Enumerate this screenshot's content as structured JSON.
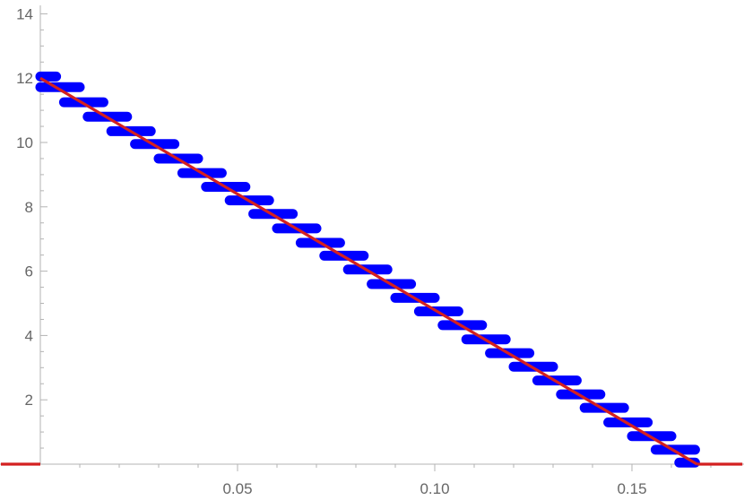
{
  "chart_data": {
    "type": "scatter",
    "title": "",
    "xlabel": "",
    "ylabel": "",
    "xlim": [
      0,
      0.178
    ],
    "ylim": [
      0,
      14
    ],
    "x_ticks": [
      {
        "value": 0.05,
        "label": "0.05"
      },
      {
        "value": 0.1,
        "label": "0.10"
      },
      {
        "value": 0.15,
        "label": "0.15"
      }
    ],
    "y_ticks": [
      {
        "value": 2,
        "label": "2"
      },
      {
        "value": 4,
        "label": "4"
      },
      {
        "value": 6,
        "label": "6"
      },
      {
        "value": 8,
        "label": "8"
      },
      {
        "value": 10,
        "label": "10"
      },
      {
        "value": 12,
        "label": "12"
      },
      {
        "value": 14,
        "label": "14"
      }
    ],
    "grid": false,
    "legend": "none",
    "series": [
      {
        "kind": "points",
        "color": "#0000ff",
        "segments": [
          {
            "x_start": 0.0,
            "x_end": 0.004,
            "y": 12.05
          },
          {
            "x_start": 0.0,
            "x_end": 0.01,
            "y": 11.72
          },
          {
            "x_start": 0.006,
            "x_end": 0.016,
            "y": 11.25
          },
          {
            "x_start": 0.012,
            "x_end": 0.022,
            "y": 10.8
          },
          {
            "x_start": 0.018,
            "x_end": 0.028,
            "y": 10.35
          },
          {
            "x_start": 0.024,
            "x_end": 0.034,
            "y": 9.95
          },
          {
            "x_start": 0.03,
            "x_end": 0.04,
            "y": 9.5
          },
          {
            "x_start": 0.036,
            "x_end": 0.046,
            "y": 9.05
          },
          {
            "x_start": 0.042,
            "x_end": 0.052,
            "y": 8.62
          },
          {
            "x_start": 0.048,
            "x_end": 0.058,
            "y": 8.2
          },
          {
            "x_start": 0.054,
            "x_end": 0.064,
            "y": 7.78
          },
          {
            "x_start": 0.06,
            "x_end": 0.07,
            "y": 7.33
          },
          {
            "x_start": 0.066,
            "x_end": 0.076,
            "y": 6.88
          },
          {
            "x_start": 0.072,
            "x_end": 0.082,
            "y": 6.48
          },
          {
            "x_start": 0.078,
            "x_end": 0.088,
            "y": 6.05
          },
          {
            "x_start": 0.084,
            "x_end": 0.094,
            "y": 5.6
          },
          {
            "x_start": 0.09,
            "x_end": 0.1,
            "y": 5.17
          },
          {
            "x_start": 0.096,
            "x_end": 0.106,
            "y": 4.75
          },
          {
            "x_start": 0.102,
            "x_end": 0.112,
            "y": 4.32
          },
          {
            "x_start": 0.108,
            "x_end": 0.118,
            "y": 3.88
          },
          {
            "x_start": 0.114,
            "x_end": 0.124,
            "y": 3.45
          },
          {
            "x_start": 0.12,
            "x_end": 0.13,
            "y": 3.03
          },
          {
            "x_start": 0.126,
            "x_end": 0.136,
            "y": 2.6
          },
          {
            "x_start": 0.132,
            "x_end": 0.142,
            "y": 2.17
          },
          {
            "x_start": 0.138,
            "x_end": 0.148,
            "y": 1.75
          },
          {
            "x_start": 0.144,
            "x_end": 0.154,
            "y": 1.3
          },
          {
            "x_start": 0.15,
            "x_end": 0.16,
            "y": 0.87
          },
          {
            "x_start": 0.156,
            "x_end": 0.166,
            "y": 0.45
          },
          {
            "x_start": 0.162,
            "x_end": 0.166,
            "y": 0.05
          }
        ]
      },
      {
        "kind": "line",
        "color": "#d42020",
        "points": [
          [
            0.0,
            12.0
          ],
          [
            0.1665,
            0.0
          ]
        ]
      },
      {
        "kind": "line",
        "color": "#d42020",
        "points": [
          [
            -0.01,
            0.0
          ],
          [
            0.0,
            0.0
          ]
        ]
      },
      {
        "kind": "line",
        "color": "#d42020",
        "points": [
          [
            0.1665,
            0.0
          ],
          [
            0.178,
            0.0
          ]
        ]
      }
    ]
  }
}
